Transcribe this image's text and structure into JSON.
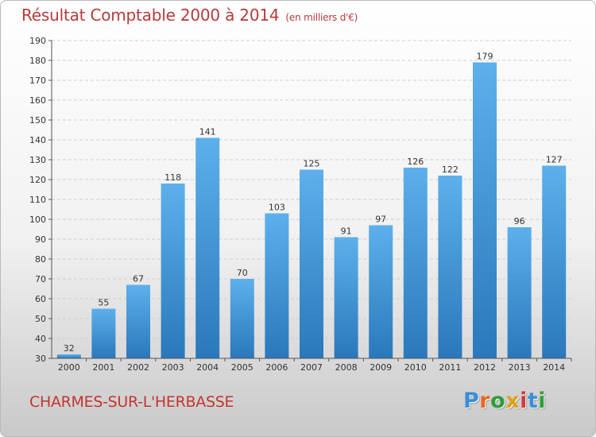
{
  "header": {
    "title": "Résultat Comptable 2000 à 2014",
    "subtitle": "(en milliers d'€)"
  },
  "footer": {
    "commune": "CHARMES-SUR-L'HERBASSE",
    "logo_letters": [
      {
        "char": "P",
        "color": "#3a8fd6"
      },
      {
        "char": "r",
        "color": "#e8681e"
      },
      {
        "char": "o",
        "color": "#2f9e3a"
      },
      {
        "char": "x",
        "color": "#e0a21c"
      },
      {
        "char": "i",
        "color": "#d43a3a"
      },
      {
        "char": "t",
        "color": "#3a8fd6"
      },
      {
        "char": "i",
        "color": "#2f9e3a"
      }
    ]
  },
  "colors": {
    "bar_top": "#5db0ec",
    "bar_bottom": "#2a78bb",
    "grid": "#cfcfcf",
    "title": "#b83a3a",
    "commune": "#c5342f"
  },
  "chart_data": {
    "type": "bar",
    "title": "Résultat Comptable 2000 à 2014",
    "subtitle": "(en milliers d'€)",
    "xlabel": "",
    "ylabel": "",
    "categories": [
      "2000",
      "2001",
      "2002",
      "2003",
      "2004",
      "2005",
      "2006",
      "2007",
      "2008",
      "2009",
      "2010",
      "2011",
      "2012",
      "2013",
      "2014"
    ],
    "values": [
      32,
      55,
      67,
      118,
      141,
      70,
      103,
      125,
      91,
      97,
      126,
      122,
      179,
      96,
      127
    ],
    "ylim": [
      30,
      190
    ],
    "yticks": [
      30,
      40,
      50,
      60,
      70,
      80,
      90,
      100,
      110,
      120,
      130,
      140,
      150,
      160,
      170,
      180,
      190
    ],
    "grid": true,
    "data_labels": true
  }
}
